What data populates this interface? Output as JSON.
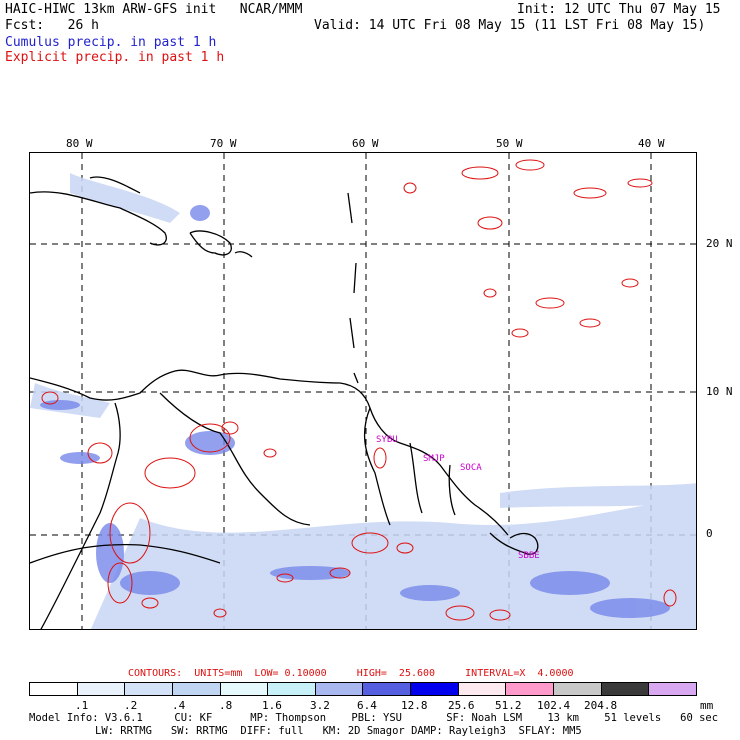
{
  "header": {
    "title": "HAIC-HIWC 13km ARW-GFS init   NCAR/MMM",
    "init": "Init: 12 UTC Thu 07 May 15",
    "fcst": "Fcst:   26 h",
    "valid": "Valid: 14 UTC Fri 08 May 15 (11 LST Fri 08 May 15)",
    "cumulus": "Cumulus precip. in past 1 h",
    "explicit": "Explicit precip. in past 1 h"
  },
  "map": {
    "lon_labels": [
      "80 W",
      "70 W",
      "60 W",
      "50 W",
      "40 W"
    ],
    "lat_labels": [
      "20 N",
      "10 N",
      "0"
    ],
    "stations": [
      "SYBU",
      "SMJP",
      "SOCA",
      "SBBE"
    ],
    "station_color": "#cc00cc",
    "coast_color": "#000000",
    "explicit_color": "#dd1111",
    "cumulus_color": "#6677ee"
  },
  "contours": "CONTOURS:  UNITS=mm  LOW= 0.10000     HIGH=  25.600     INTERVAL=X  4.0000",
  "colorbar": {
    "colors": [
      "#ffffff",
      "#e9f1fb",
      "#d3e2f6",
      "#c0d5f2",
      "#e6fafd",
      "#c8f0f8",
      "#aab8f0",
      "#5560e0",
      "#0000ee",
      "#fdeaf0",
      "#ff9acb",
      "#c8c8c8",
      "#3a3a3a",
      "#d8a8f0"
    ],
    "labels": [
      ".1",
      ".2",
      ".4",
      ".8",
      "1.6",
      "3.2",
      "6.4",
      "12.8",
      "25.6",
      "51.2",
      "102.4",
      "204.8"
    ],
    "unit": "mm"
  },
  "model_info": {
    "line1": "Model Info: V3.6.1     CU: KF      MP: Thompson    PBL: YSU       SF: Noah LSM    13 km    51 levels   60 sec",
    "line2": "LW: RRTMG   SW: RRTMG  DIFF: full   KM: 2D Smagor DAMP: Rayleigh3  SFLAY: MM5"
  }
}
